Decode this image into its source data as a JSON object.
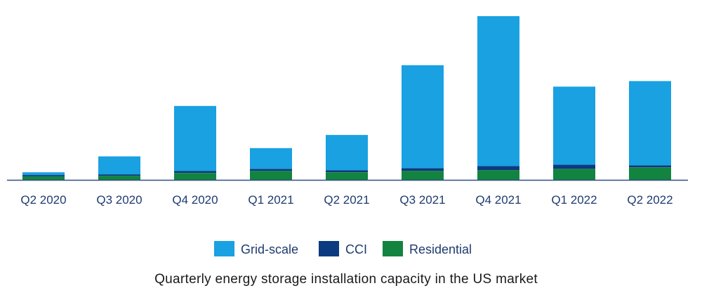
{
  "chart_data": {
    "type": "bar",
    "stacked": true,
    "categories": [
      "Q2 2020",
      "Q3 2020",
      "Q4 2020",
      "Q1 2021",
      "Q2 2021",
      "Q3 2021",
      "Q4 2021",
      "Q1 2022",
      "Q2 2022"
    ],
    "series": [
      {
        "name": "Residential",
        "color": "#12843f",
        "values": [
          5,
          6,
          10,
          13,
          11,
          13,
          14,
          16,
          18
        ]
      },
      {
        "name": "CCI",
        "color": "#0b3a80",
        "values": [
          2,
          2,
          3,
          3,
          3,
          4,
          6,
          6,
          3
        ]
      },
      {
        "name": "Grid-scale",
        "color": "#19a1e2",
        "values": [
          4,
          26,
          94,
          30,
          51,
          149,
          217,
          113,
          122
        ]
      }
    ],
    "ylim": [
      0,
      240
    ],
    "xlabel": "",
    "ylabel": "",
    "grid": false,
    "legend_position": "bottom",
    "legend_order": [
      "Grid-scale",
      "CCI",
      "Residential"
    ],
    "axis_color": "#2f4f86",
    "caption": "Quarterly energy storage installation capacity in the US market"
  }
}
